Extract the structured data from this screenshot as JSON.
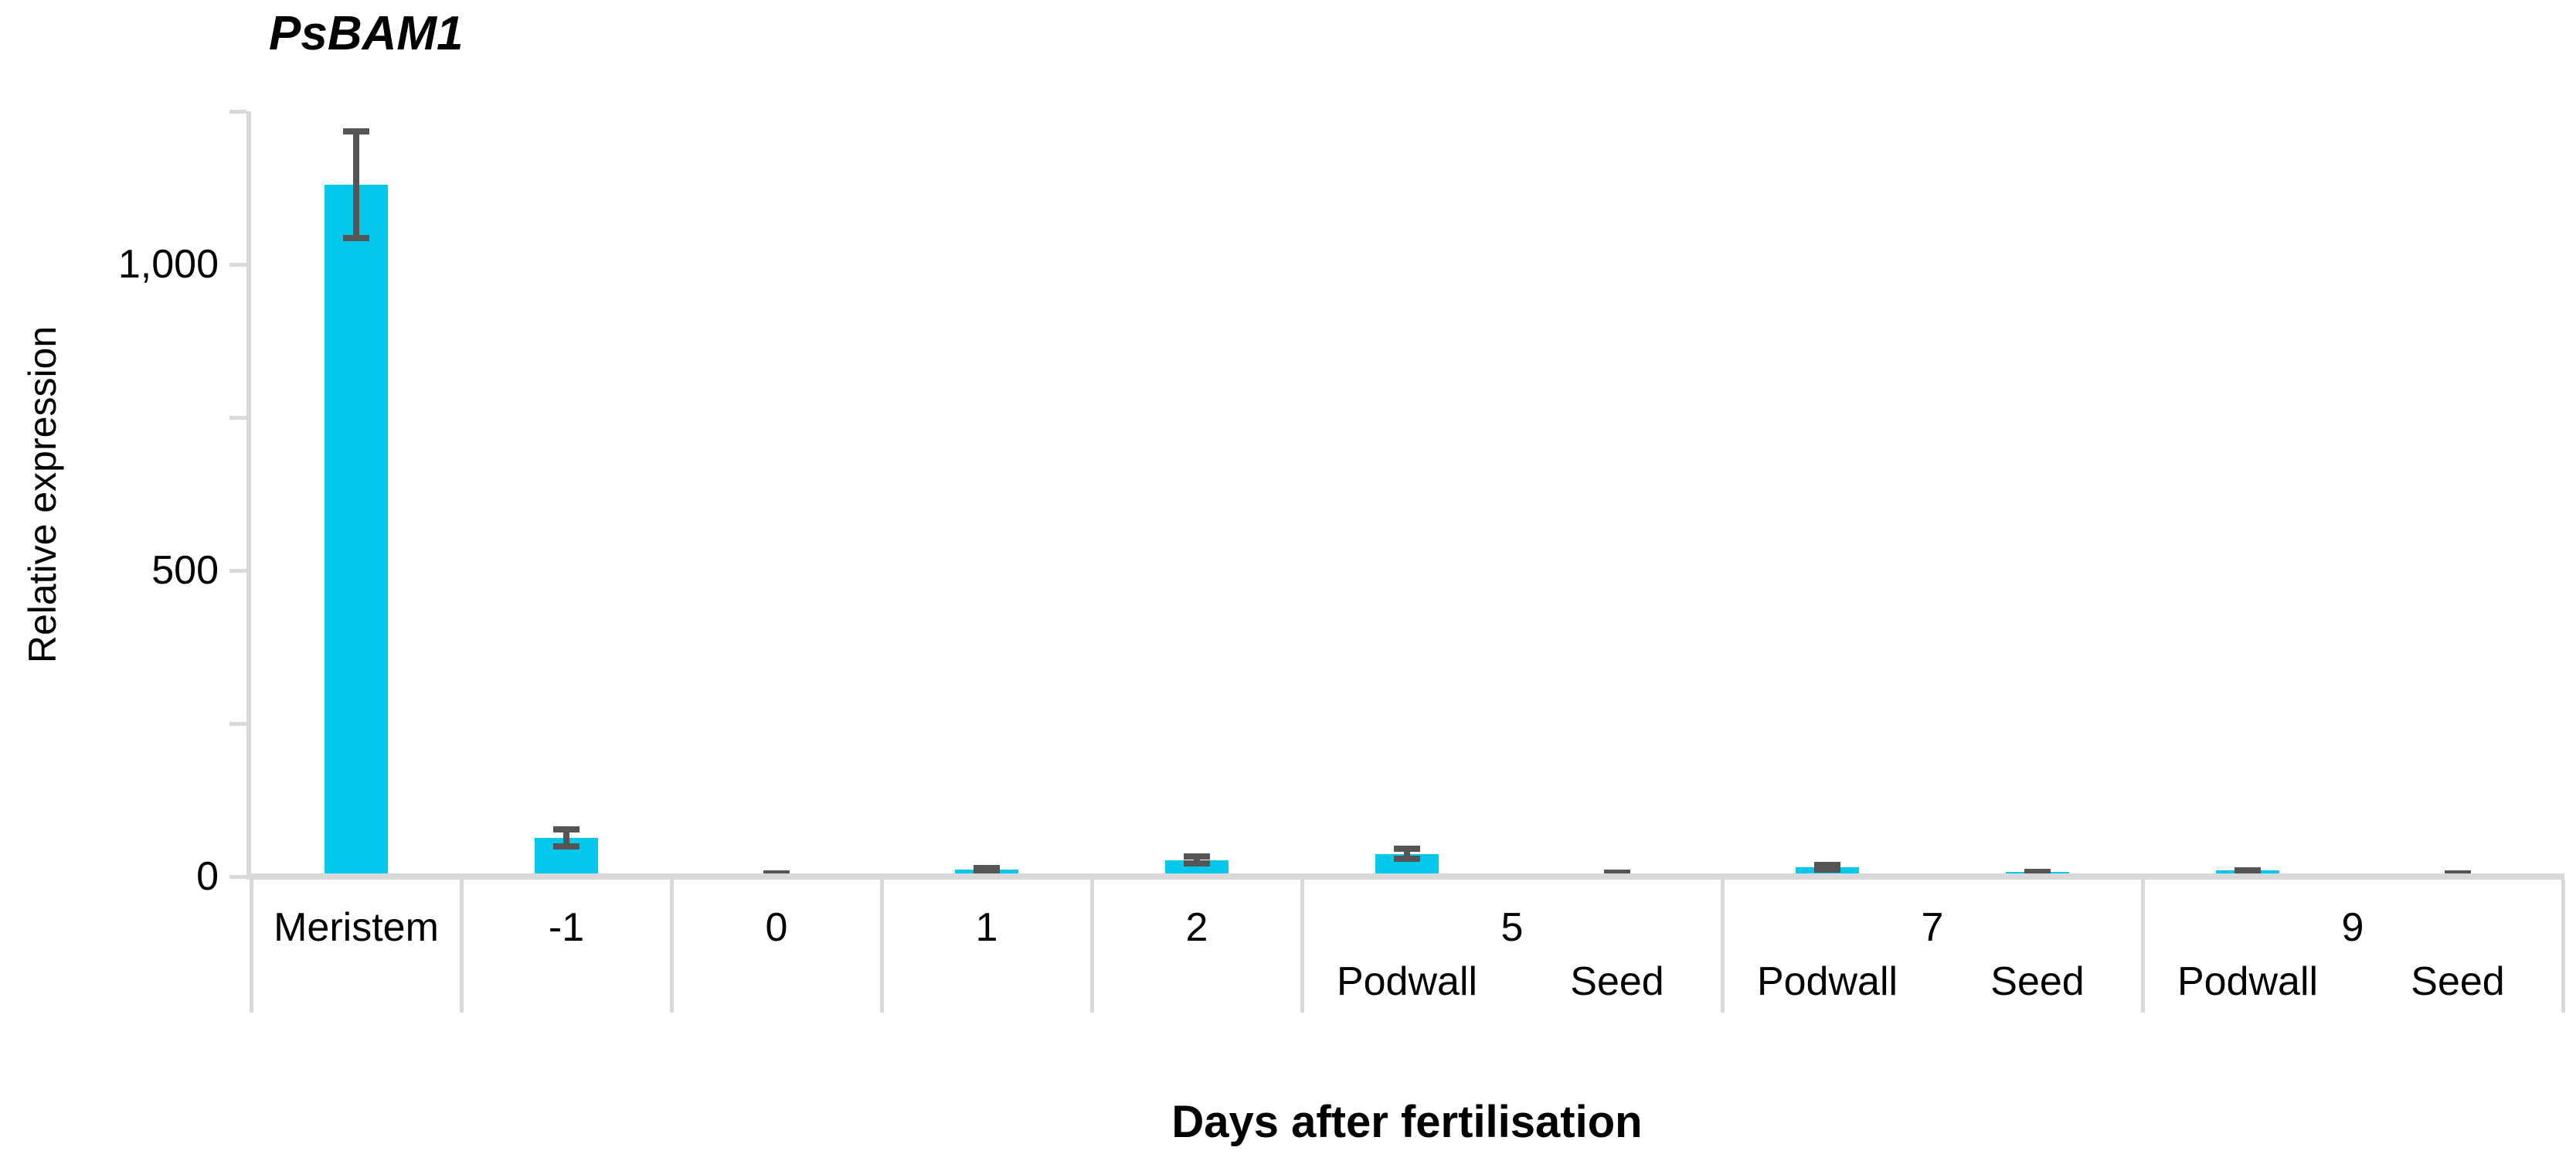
{
  "colors": {
    "bar": "#04C7EC",
    "error_bar": "#555555",
    "axis": "#D9D9D9",
    "text": "#000000"
  },
  "chart_data": {
    "type": "bar",
    "title": "PsBAM1",
    "xlabel": "Days after fertilisation",
    "ylabel": "Relative expression",
    "ylim": [
      0,
      1250
    ],
    "grid": false,
    "legend": false,
    "y_ticks": [
      {
        "value": 0,
        "label": "0"
      },
      {
        "value": 250,
        "label": ""
      },
      {
        "value": 500,
        "label": "500"
      },
      {
        "value": 750,
        "label": ""
      },
      {
        "value": 1000,
        "label": "1,000"
      },
      {
        "value": 1250,
        "label": ""
      }
    ],
    "groups": [
      {
        "label": "Meristem",
        "bars": [
          {
            "sublabel": "",
            "value": 1130,
            "error": 92
          }
        ]
      },
      {
        "label": "-1",
        "bars": [
          {
            "sublabel": "",
            "value": 63,
            "error": 19
          }
        ]
      },
      {
        "label": "0",
        "bars": [
          {
            "sublabel": "",
            "value": 3,
            "error": 4
          }
        ]
      },
      {
        "label": "1",
        "bars": [
          {
            "sublabel": "",
            "value": 12,
            "error": 7
          }
        ]
      },
      {
        "label": "2",
        "bars": [
          {
            "sublabel": "",
            "value": 27,
            "error": 11
          }
        ]
      },
      {
        "label": "5",
        "bars": [
          {
            "sublabel": "Podwall",
            "value": 37,
            "error": 13
          },
          {
            "sublabel": "Seed",
            "value": 5,
            "error": 4
          }
        ]
      },
      {
        "label": "7",
        "bars": [
          {
            "sublabel": "Podwall",
            "value": 15,
            "error": 9
          },
          {
            "sublabel": "Seed",
            "value": 8,
            "error": 5
          }
        ]
      },
      {
        "label": "9",
        "bars": [
          {
            "sublabel": "Podwall",
            "value": 10,
            "error": 5
          },
          {
            "sublabel": "Seed",
            "value": 2,
            "error": 4
          }
        ]
      }
    ]
  }
}
